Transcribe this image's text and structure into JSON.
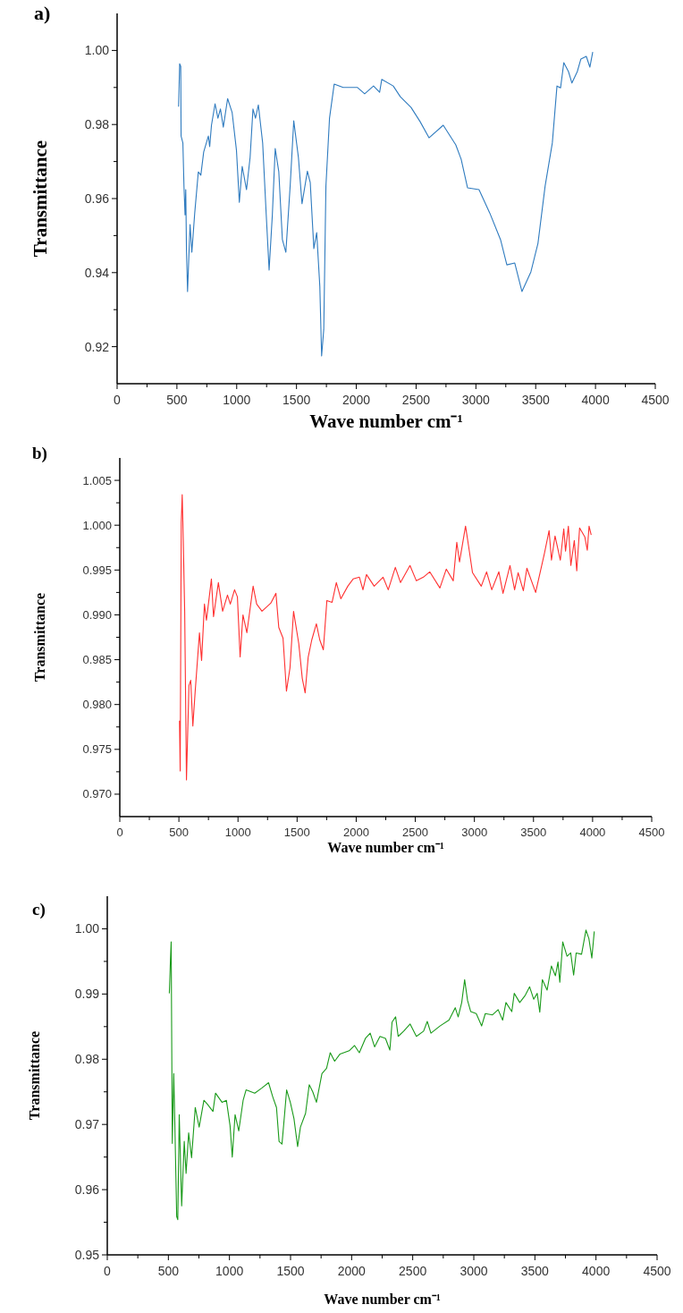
{
  "chart_data": [
    {
      "type": "line",
      "title": "a)",
      "xlabel": "Wave number cm⁻¹",
      "ylabel": "Transmittance",
      "xlim": [
        0,
        4500
      ],
      "ylim": [
        0.91,
        1.01
      ],
      "xticks": [
        0,
        {
          "value": 250,
          "label": null
        },
        500,
        {
          "value": 750,
          "label": null
        },
        1000,
        {
          "value": 1250,
          "label": null
        },
        1500,
        {
          "value": 1750,
          "label": null
        },
        2000,
        {
          "value": 2250,
          "label": null
        },
        2500,
        {
          "value": 2750,
          "label": null
        },
        3000,
        {
          "value": 3250,
          "label": null
        },
        3500,
        {
          "value": 3750,
          "label": null
        },
        4000,
        {
          "value": 4250,
          "label": null
        },
        4500
      ],
      "yticks": [
        {
          "value": 0.92,
          "label": "0.92"
        },
        {
          "value": 0.93,
          "label": null
        },
        {
          "value": 0.94,
          "label": "0.94"
        },
        {
          "value": 0.95,
          "label": null
        },
        {
          "value": 0.96,
          "label": "0.96"
        },
        {
          "value": 0.97,
          "label": null
        },
        {
          "value": 0.98,
          "label": "0.98"
        },
        {
          "value": 0.99,
          "label": null
        },
        {
          "value": 1.0,
          "label": "1.00"
        }
      ],
      "x": [
        514,
        523,
        532,
        535,
        550,
        559,
        568,
        574,
        580,
        589,
        610,
        625,
        649,
        679,
        700,
        724,
        763,
        774,
        789,
        819,
        843,
        864,
        888,
        924,
        962,
        998,
        1022,
        1046,
        1082,
        1112,
        1136,
        1157,
        1181,
        1217,
        1247,
        1271,
        1298,
        1322,
        1352,
        1382,
        1411,
        1447,
        1477,
        1516,
        1546,
        1591,
        1615,
        1645,
        1669,
        1695,
        1710,
        1728,
        1746,
        1776,
        1815,
        1890,
        2010,
        2070,
        2144,
        2195,
        2213,
        2309,
        2368,
        2458,
        2533,
        2608,
        2727,
        2832,
        2877,
        2930,
        3026,
        3116,
        3206,
        3259,
        3325,
        3385,
        3460,
        3519,
        3579,
        3639,
        3678,
        3708,
        3735,
        3774,
        3803,
        3848,
        3878,
        3923,
        3953,
        3977
      ],
      "series": [
        {
          "color": "#2f7bbf",
          "values": [
            0.9848,
            0.9964,
            0.9957,
            0.9769,
            0.975,
            0.9634,
            0.9556,
            0.9624,
            0.946,
            0.9349,
            0.953,
            0.9455,
            0.9561,
            0.9672,
            0.9663,
            0.9726,
            0.9769,
            0.974,
            0.9798,
            0.9856,
            0.9817,
            0.9842,
            0.9793,
            0.987,
            0.9832,
            0.973,
            0.959,
            0.9687,
            0.9624,
            0.9711,
            0.9842,
            0.9817,
            0.9853,
            0.975,
            0.9556,
            0.9407,
            0.9556,
            0.9735,
            0.9672,
            0.9489,
            0.9455,
            0.9634,
            0.981,
            0.9711,
            0.9586,
            0.9674,
            0.9643,
            0.9465,
            0.9508,
            0.9363,
            0.9175,
            0.9247,
            0.9634,
            0.9817,
            0.9909,
            0.99,
            0.99,
            0.9883,
            0.9904,
            0.9887,
            0.9922,
            0.9904,
            0.9875,
            0.9846,
            0.9808,
            0.9764,
            0.9798,
            0.9745,
            0.9706,
            0.9629,
            0.9624,
            0.9561,
            0.9489,
            0.9421,
            0.9426,
            0.9349,
            0.9402,
            0.9479,
            0.9634,
            0.975,
            0.9904,
            0.9899,
            0.9967,
            0.9943,
            0.9912,
            0.9943,
            0.9977,
            0.9984,
            0.9955,
            0.9996
          ]
        }
      ]
    },
    {
      "type": "line",
      "title": "b)",
      "xlabel": "Wave number cm⁻¹",
      "ylabel": "Transmittance",
      "xlim": [
        0,
        4500
      ],
      "ylim": [
        0.9675,
        1.0075
      ],
      "xticks": [
        0,
        {
          "value": 250,
          "label": null
        },
        500,
        {
          "value": 750,
          "label": null
        },
        1000,
        {
          "value": 1250,
          "label": null
        },
        1500,
        {
          "value": 1750,
          "label": null
        },
        2000,
        {
          "value": 2250,
          "label": null
        },
        2500,
        {
          "value": 2750,
          "label": null
        },
        3000,
        {
          "value": 3250,
          "label": null
        },
        3500,
        {
          "value": 3750,
          "label": null
        },
        4000,
        {
          "value": 4250,
          "label": null
        },
        4500
      ],
      "yticks": [
        {
          "value": 0.97,
          "label": "0.970"
        },
        {
          "value": 0.9725,
          "label": null
        },
        {
          "value": 0.975,
          "label": "0.975"
        },
        {
          "value": 0.9775,
          "label": null
        },
        {
          "value": 0.98,
          "label": "0.980"
        },
        {
          "value": 0.9825,
          "label": null
        },
        {
          "value": 0.985,
          "label": "0.985"
        },
        {
          "value": 0.9875,
          "label": null
        },
        {
          "value": 0.99,
          "label": "0.990"
        },
        {
          "value": 0.9925,
          "label": null
        },
        {
          "value": 0.995,
          "label": "0.995"
        },
        {
          "value": 0.9975,
          "label": null
        },
        {
          "value": 1.0,
          "label": "1.000"
        },
        {
          "value": 1.0025,
          "label": null
        },
        {
          "value": 1.005,
          "label": "1.005"
        }
      ],
      "x": [
        505,
        511,
        520,
        528,
        537,
        549,
        564,
        585,
        600,
        618,
        638,
        674,
        692,
        716,
        733,
        757,
        775,
        793,
        834,
        870,
        911,
        935,
        971,
        995,
        1018,
        1042,
        1075,
        1128,
        1158,
        1203,
        1277,
        1321,
        1345,
        1381,
        1410,
        1440,
        1470,
        1514,
        1544,
        1568,
        1594,
        1624,
        1663,
        1692,
        1722,
        1752,
        1796,
        1832,
        1870,
        1929,
        1974,
        2027,
        2057,
        2087,
        2152,
        2227,
        2271,
        2331,
        2375,
        2455,
        2509,
        2568,
        2622,
        2708,
        2762,
        2821,
        2851,
        2874,
        2925,
        2955,
        2984,
        3058,
        3103,
        3147,
        3207,
        3242,
        3301,
        3340,
        3370,
        3414,
        3444,
        3518,
        3593,
        3632,
        3652,
        3682,
        3727,
        3756,
        3771,
        3795,
        3816,
        3845,
        3866,
        3890,
        3934,
        3955,
        3970,
        3988
      ],
      "series": [
        {
          "color": "#ff3030",
          "values": [
            0.9782,
            0.9726,
            1.0003,
            1.0034,
            0.9983,
            0.9904,
            0.9716,
            0.9821,
            0.9827,
            0.9776,
            0.9815,
            0.988,
            0.9849,
            0.9912,
            0.9894,
            0.992,
            0.994,
            0.9898,
            0.9936,
            0.9904,
            0.9922,
            0.9912,
            0.9928,
            0.992,
            0.9853,
            0.99,
            0.988,
            0.9932,
            0.9912,
            0.9904,
            0.9913,
            0.9924,
            0.9886,
            0.9874,
            0.9815,
            0.9841,
            0.9904,
            0.9868,
            0.9829,
            0.9813,
            0.9853,
            0.9872,
            0.989,
            0.9872,
            0.9861,
            0.9916,
            0.9914,
            0.9936,
            0.9918,
            0.9932,
            0.994,
            0.9942,
            0.9928,
            0.9945,
            0.9932,
            0.9942,
            0.9928,
            0.9953,
            0.9936,
            0.9955,
            0.9938,
            0.9942,
            0.9948,
            0.993,
            0.9951,
            0.9938,
            0.9981,
            0.9959,
            0.9999,
            0.9973,
            0.9947,
            0.9932,
            0.9948,
            0.9928,
            0.9948,
            0.9924,
            0.9955,
            0.9928,
            0.9947,
            0.9927,
            0.9952,
            0.9925,
            0.9969,
            0.9994,
            0.9961,
            0.9988,
            0.9961,
            0.9996,
            0.9971,
            0.9999,
            0.9955,
            0.9983,
            0.9949,
            0.9997,
            0.9987,
            0.9972,
            0.9999,
            0.9989
          ]
        }
      ]
    },
    {
      "type": "line",
      "title": "c)",
      "xlabel": "Wave number cm⁻¹",
      "ylabel": "Transmittance",
      "xlim": [
        0,
        4500
      ],
      "ylim": [
        0.95,
        1.005
      ],
      "xticks": [
        0,
        {
          "value": 250,
          "label": null
        },
        500,
        {
          "value": 750,
          "label": null
        },
        1000,
        {
          "value": 1250,
          "label": null
        },
        1500,
        {
          "value": 1750,
          "label": null
        },
        2000,
        {
          "value": 2250,
          "label": null
        },
        2500,
        {
          "value": 2750,
          "label": null
        },
        3000,
        {
          "value": 3250,
          "label": null
        },
        3500,
        {
          "value": 3750,
          "label": null
        },
        4000,
        {
          "value": 4250,
          "label": null
        },
        4500
      ],
      "yticks": [
        {
          "value": 0.95,
          "label": "0.95"
        },
        {
          "value": 0.955,
          "label": null
        },
        {
          "value": 0.96,
          "label": "0.96"
        },
        {
          "value": 0.965,
          "label": null
        },
        {
          "value": 0.97,
          "label": "0.97"
        },
        {
          "value": 0.975,
          "label": null
        },
        {
          "value": 0.98,
          "label": "0.98"
        },
        {
          "value": 0.985,
          "label": null
        },
        {
          "value": 0.99,
          "label": "0.99"
        },
        {
          "value": 0.995,
          "label": null
        },
        {
          "value": 1.0,
          "label": "1.00"
        }
      ],
      "x": [
        508,
        517,
        523,
        532,
        544,
        553,
        568,
        577,
        589,
        609,
        630,
        645,
        666,
        690,
        720,
        752,
        791,
        820,
        865,
        886,
        939,
        975,
        1005,
        1023,
        1046,
        1076,
        1112,
        1136,
        1207,
        1266,
        1320,
        1355,
        1385,
        1406,
        1430,
        1451,
        1468,
        1498,
        1528,
        1558,
        1581,
        1623,
        1653,
        1682,
        1712,
        1757,
        1795,
        1825,
        1861,
        1905,
        1980,
        2024,
        2063,
        2113,
        2152,
        2188,
        2232,
        2277,
        2313,
        2331,
        2360,
        2381,
        2426,
        2479,
        2530,
        2589,
        2619,
        2649,
        2723,
        2797,
        2848,
        2872,
        2901,
        2925,
        2949,
        2975,
        3020,
        3064,
        3094,
        3153,
        3199,
        3236,
        3263,
        3311,
        3331,
        3376,
        3421,
        3457,
        3490,
        3519,
        3540,
        3561,
        3600,
        3635,
        3668,
        3689,
        3704,
        3728,
        3763,
        3793,
        3817,
        3838,
        3882,
        3918,
        3942,
        3966,
        3986
      ],
      "series": [
        {
          "color": "#1a9a1a",
          "values": [
            0.9901,
            0.9952,
            0.998,
            0.9671,
            0.9778,
            0.9701,
            0.9559,
            0.9554,
            0.9715,
            0.9575,
            0.9674,
            0.9625,
            0.9687,
            0.9649,
            0.9726,
            0.9696,
            0.9737,
            0.9731,
            0.972,
            0.9748,
            0.9734,
            0.9737,
            0.9698,
            0.965,
            0.9715,
            0.969,
            0.9737,
            0.9753,
            0.9748,
            0.9756,
            0.9764,
            0.9742,
            0.9726,
            0.9674,
            0.967,
            0.9715,
            0.9753,
            0.9734,
            0.9709,
            0.9666,
            0.9696,
            0.9717,
            0.9761,
            0.975,
            0.9734,
            0.9778,
            0.9786,
            0.981,
            0.9797,
            0.9808,
            0.9813,
            0.9821,
            0.981,
            0.9832,
            0.984,
            0.9819,
            0.9835,
            0.9832,
            0.9814,
            0.9857,
            0.9865,
            0.9835,
            0.9843,
            0.9854,
            0.9835,
            0.9843,
            0.9858,
            0.984,
            0.9851,
            0.986,
            0.9879,
            0.9865,
            0.9887,
            0.9922,
            0.989,
            0.9873,
            0.987,
            0.9851,
            0.987,
            0.9868,
            0.9876,
            0.986,
            0.9887,
            0.9873,
            0.9901,
            0.9887,
            0.9898,
            0.9911,
            0.9892,
            0.9901,
            0.9872,
            0.9922,
            0.9906,
            0.9943,
            0.9928,
            0.9949,
            0.9918,
            0.998,
            0.9958,
            0.9963,
            0.9929,
            0.9963,
            0.9961,
            0.9998,
            0.9985,
            0.9955,
            0.9996
          ]
        }
      ]
    }
  ]
}
